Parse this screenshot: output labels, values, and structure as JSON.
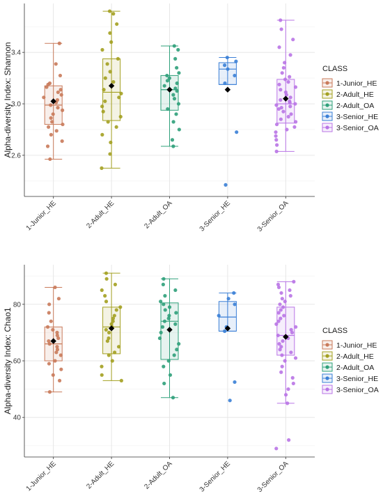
{
  "legend_title": "CLASS",
  "colors": {
    "1-Junior_HE": "#c97a5a",
    "2-Adult_HE": "#a3a020",
    "2-Adult_OA": "#2fa07a",
    "3-Senior_HE": "#3a7fd6",
    "3-Senior_OA": "#b974e6"
  },
  "chart_data": [
    {
      "type": "box",
      "ylabel": "Alpha-diversity Index: Shannon",
      "ylim": [
        2.28,
        3.78
      ],
      "yticks": [
        2.6,
        3.0,
        3.4
      ],
      "ytick_labels": [
        "2.6",
        "3.0",
        "3.4"
      ],
      "categories": [
        "1-Junior_HE",
        "2-Adult_HE",
        "2-Adult_OA",
        "3-Senior_HE",
        "3-Senior_OA"
      ],
      "series": [
        {
          "name": "1-Junior_HE",
          "q1": 2.84,
          "median": 2.99,
          "q3": 3.14,
          "whisker_low": 2.57,
          "whisker_high": 3.47,
          "mean": 3.02,
          "points": [
            2.57,
            2.67,
            2.71,
            2.76,
            2.79,
            2.82,
            2.84,
            2.86,
            2.89,
            2.92,
            2.95,
            2.97,
            2.99,
            3.01,
            3.03,
            3.05,
            3.07,
            3.09,
            3.11,
            3.13,
            3.15,
            3.16,
            3.22,
            3.31,
            3.47
          ]
        },
        {
          "name": "2-Adult_HE",
          "q1": 2.87,
          "median": 3.09,
          "q3": 3.35,
          "whisker_low": 2.5,
          "whisker_high": 3.72,
          "mean": 3.14,
          "points": [
            2.5,
            2.61,
            2.7,
            2.76,
            2.82,
            2.86,
            2.9,
            2.94,
            2.98,
            3.02,
            3.05,
            3.08,
            3.11,
            3.14,
            3.17,
            3.2,
            3.25,
            3.31,
            3.35,
            3.42,
            3.48,
            3.55,
            3.62,
            3.7,
            3.72
          ]
        },
        {
          "name": "2-Adult_OA",
          "q1": 2.95,
          "median": 3.11,
          "q3": 3.22,
          "whisker_low": 2.67,
          "whisker_high": 3.45,
          "mean": 3.11,
          "points": [
            2.67,
            2.72,
            2.8,
            2.86,
            2.92,
            2.96,
            3.0,
            3.04,
            3.07,
            3.1,
            3.12,
            3.14,
            3.16,
            3.18,
            3.2,
            3.22,
            3.24,
            3.28,
            3.35,
            3.42,
            3.45
          ]
        },
        {
          "name": "3-Senior_HE",
          "q1": 3.15,
          "median": 3.27,
          "q3": 3.32,
          "whisker_low": 3.15,
          "whisker_high": 3.36,
          "mean": 3.11,
          "points": [
            3.16,
            3.22,
            3.27,
            3.3,
            3.33,
            3.36,
            2.78,
            2.37
          ]
        },
        {
          "name": "3-Senior_OA",
          "q1": 2.85,
          "median": 3.0,
          "q3": 3.19,
          "whisker_low": 2.63,
          "whisker_high": 3.65,
          "mean": 3.04,
          "points": [
            2.63,
            2.68,
            2.72,
            2.75,
            2.78,
            2.8,
            2.82,
            2.84,
            2.86,
            2.88,
            2.9,
            2.92,
            2.94,
            2.96,
            2.97,
            2.98,
            2.99,
            3.0,
            3.01,
            3.02,
            3.03,
            3.05,
            3.07,
            3.09,
            3.11,
            3.13,
            3.15,
            3.17,
            3.19,
            3.21,
            3.24,
            3.28,
            3.32,
            3.38,
            3.44,
            3.5,
            3.58,
            3.65
          ]
        }
      ]
    },
    {
      "type": "box",
      "ylabel": "Alpha-diversity Index: Chao1",
      "ylim": [
        26,
        94
      ],
      "yticks": [
        40,
        60,
        80
      ],
      "ytick_labels": [
        "40",
        "60",
        "80"
      ],
      "categories": [
        "1-Junior_HE",
        "2-Adult_HE",
        "2-Adult_OA",
        "3-Senior_HE",
        "3-Senior_OA"
      ],
      "series": [
        {
          "name": "1-Junior_HE",
          "q1": 60,
          "median": 66,
          "q3": 72,
          "whisker_low": 49,
          "whisker_high": 86,
          "mean": 67,
          "points": [
            49,
            53,
            55,
            57,
            59,
            60,
            62,
            63,
            64,
            65,
            66,
            67,
            68,
            69,
            70,
            71,
            72,
            74,
            77,
            80,
            82,
            86
          ]
        },
        {
          "name": "2-Adult_HE",
          "q1": 62.5,
          "median": 72,
          "q3": 79,
          "whisker_low": 53,
          "whisker_high": 91,
          "mean": 71.5,
          "points": [
            53,
            55,
            58,
            60,
            62,
            63,
            65,
            67,
            68,
            70,
            71,
            72,
            73,
            74,
            75,
            76,
            78,
            79,
            81,
            83,
            85,
            87,
            89,
            91
          ]
        },
        {
          "name": "2-Adult_OA",
          "q1": 60.5,
          "median": 74,
          "q3": 80.5,
          "whisker_low": 47,
          "whisker_high": 89,
          "mean": 71,
          "points": [
            47,
            52,
            55,
            58,
            60,
            62,
            64,
            66,
            68,
            70,
            72,
            73,
            74,
            75,
            76,
            77,
            78,
            79,
            80,
            81,
            83,
            85,
            87,
            89
          ]
        },
        {
          "name": "3-Senior_HE",
          "q1": 70.5,
          "median": 75.5,
          "q3": 81,
          "whisker_low": 70.5,
          "whisker_high": 84,
          "mean": 71.5,
          "points": [
            70.5,
            72,
            76,
            80,
            82,
            84,
            52.5,
            46
          ]
        },
        {
          "name": "3-Senior_OA",
          "q1": 62,
          "median": 69,
          "q3": 79,
          "whisker_low": 45,
          "whisker_high": 88,
          "mean": 68.5,
          "points": [
            29,
            32,
            45,
            48,
            50,
            52,
            54,
            56,
            58,
            60,
            61,
            62,
            63,
            64,
            65,
            66,
            67,
            68,
            69,
            70,
            71,
            72,
            73,
            74,
            75,
            76,
            77,
            78,
            79,
            80,
            81,
            82,
            83,
            84,
            85,
            86,
            87,
            88
          ]
        }
      ]
    }
  ]
}
